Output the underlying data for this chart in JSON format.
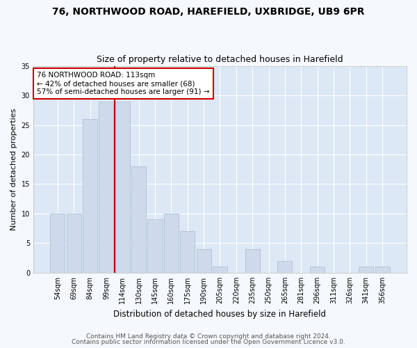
{
  "title1": "76, NORTHWOOD ROAD, HAREFIELD, UXBRIDGE, UB9 6PR",
  "title2": "Size of property relative to detached houses in Harefield",
  "xlabel": "Distribution of detached houses by size in Harefield",
  "ylabel": "Number of detached properties",
  "footer1": "Contains HM Land Registry data © Crown copyright and database right 2024.",
  "footer2": "Contains public sector information licensed under the Open Government Licence v3.0.",
  "bar_labels": [
    "54sqm",
    "69sqm",
    "84sqm",
    "99sqm",
    "114sqm",
    "130sqm",
    "145sqm",
    "160sqm",
    "175sqm",
    "190sqm",
    "205sqm",
    "220sqm",
    "235sqm",
    "250sqm",
    "265sqm",
    "281sqm",
    "296sqm",
    "311sqm",
    "326sqm",
    "341sqm",
    "356sqm"
  ],
  "bar_values": [
    10,
    10,
    26,
    29,
    29,
    18,
    9,
    10,
    7,
    4,
    1,
    0,
    4,
    0,
    2,
    0,
    1,
    0,
    0,
    1,
    1
  ],
  "bar_color": "#ccdaeb",
  "bar_edge_color": "#aabcce",
  "vline_color": "#cc0000",
  "vline_x_index": 3.5,
  "annotation_text": "76 NORTHWOOD ROAD: 113sqm\n← 42% of detached houses are smaller (68)\n57% of semi-detached houses are larger (91) →",
  "annotation_box_facecolor": "#ffffff",
  "annotation_box_edgecolor": "#cc0000",
  "ylim": [
    0,
    35
  ],
  "yticks": [
    0,
    5,
    10,
    15,
    20,
    25,
    30,
    35
  ],
  "plot_bg_color": "#dce8f5",
  "fig_bg_color": "#f5f8fc",
  "grid_color": "#ffffff",
  "title1_fontsize": 10,
  "title2_fontsize": 9,
  "xlabel_fontsize": 8.5,
  "ylabel_fontsize": 8,
  "tick_fontsize": 7,
  "footer_fontsize": 6.5,
  "annotation_fontsize": 7.5
}
